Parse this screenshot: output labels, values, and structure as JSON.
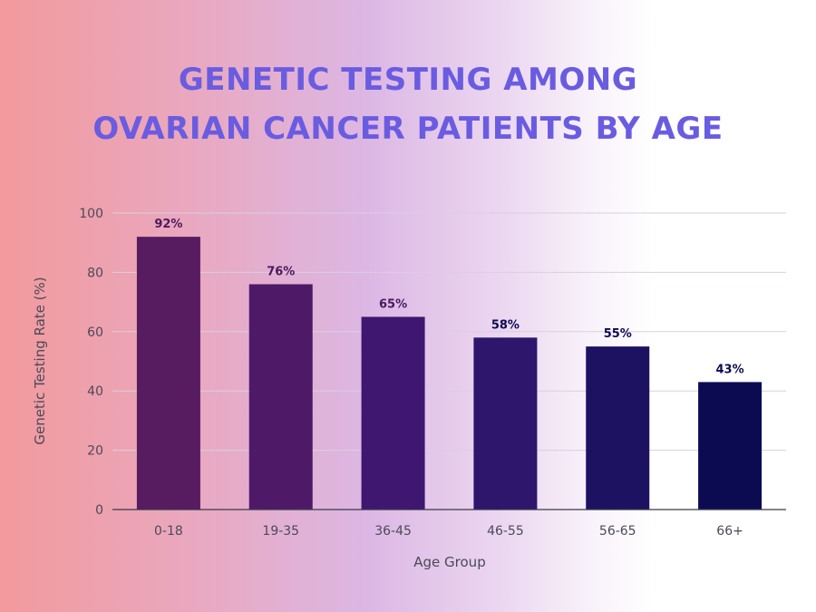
{
  "title_line1": "GENETIC TESTING AMONG",
  "title_line2": "OVARIAN CANCER PATIENTS BY AGE",
  "colors": {
    "title": "#6a5ce0",
    "bars": [
      "#571b60",
      "#4e1a68",
      "#3f1770",
      "#2d166c",
      "#1d1262",
      "#0c0b52"
    ],
    "label_top": "#4a1a60",
    "label_bottom": "#0c0b52"
  },
  "chart_data": {
    "type": "bar",
    "categories": [
      "0-18",
      "19-35",
      "36-45",
      "46-55",
      "56-65",
      "66+"
    ],
    "values": [
      92,
      76,
      65,
      58,
      55,
      43
    ],
    "data_labels": [
      "92%",
      "76%",
      "65%",
      "58%",
      "55%",
      "43%"
    ],
    "xlabel": "Age Group",
    "ylabel": "Genetic Testing Rate (%)",
    "ylim": [
      0,
      100
    ],
    "yticks": [
      0,
      20,
      40,
      60,
      80,
      100
    ],
    "grid": true
  }
}
